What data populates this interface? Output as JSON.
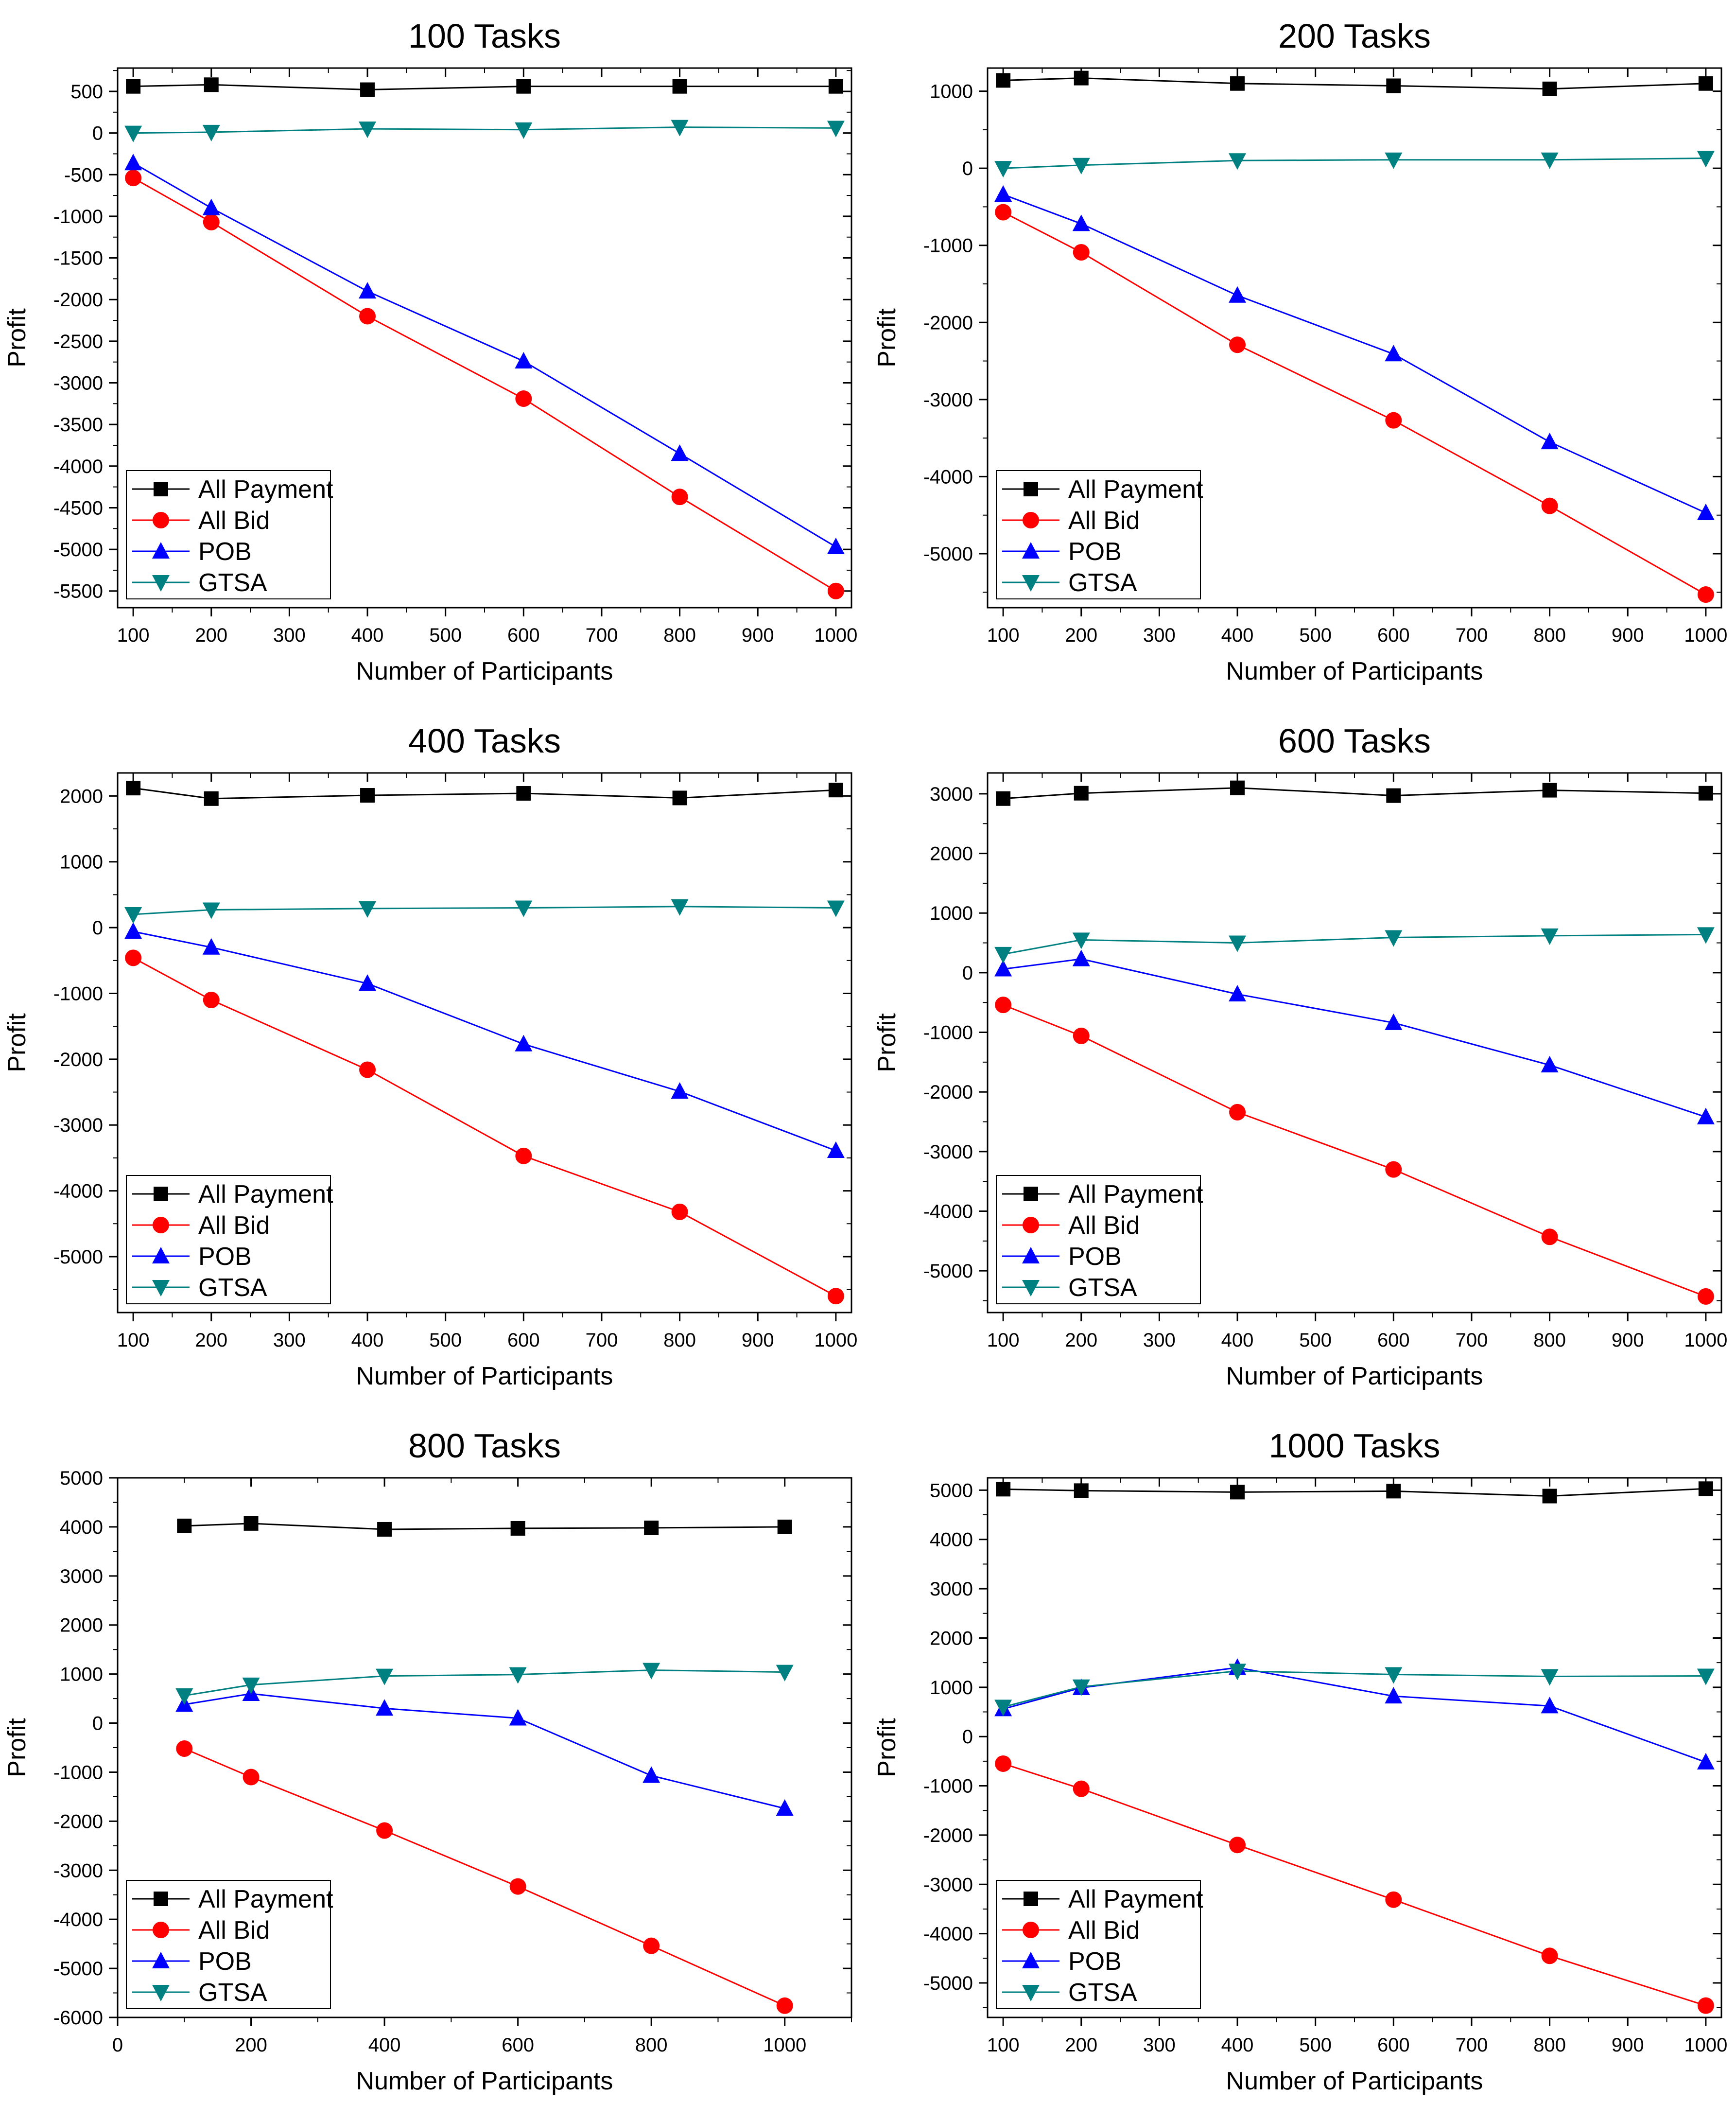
{
  "figure": {
    "chart_data": [
      {
        "type": "line",
        "title": "100 Tasks",
        "xlabel": "Number of Participants",
        "ylabel": "Profit",
        "xlim": [
          80,
          1020
        ],
        "ylim": [
          -5700,
          780
        ],
        "xticks": [
          100,
          200,
          300,
          400,
          500,
          600,
          700,
          800,
          900,
          1000
        ],
        "yticks": [
          500,
          0,
          -500,
          -1000,
          -1500,
          -2000,
          -2500,
          -3000,
          -3500,
          -4000,
          -4500,
          -5000,
          -5500
        ],
        "legend_position": "bottom-left",
        "x": [
          100,
          200,
          400,
          600,
          800,
          1000
        ],
        "series": [
          {
            "name": "All Payment",
            "marker": "square",
            "color": "#000000",
            "values": [
              560,
              580,
              520,
              560,
              560,
              560
            ]
          },
          {
            "name": "All Bid",
            "marker": "circle",
            "color": "#ff0000",
            "values": [
              -540,
              -1070,
              -2200,
              -3190,
              -4370,
              -5500
            ]
          },
          {
            "name": "POB",
            "marker": "triangle-up",
            "color": "#0000ff",
            "values": [
              -360,
              -900,
              -1900,
              -2740,
              -3850,
              -4970
            ]
          },
          {
            "name": "GTSA",
            "marker": "triangle-down",
            "color": "#008080",
            "values": [
              0,
              10,
              50,
              40,
              70,
              60
            ]
          }
        ]
      },
      {
        "type": "line",
        "title": "200 Tasks",
        "xlabel": "Number of Participants",
        "ylabel": "Profit",
        "xlim": [
          80,
          1020
        ],
        "ylim": [
          -5700,
          1300
        ],
        "xticks": [
          100,
          200,
          300,
          400,
          500,
          600,
          700,
          800,
          900,
          1000
        ],
        "yticks": [
          1000,
          0,
          -1000,
          -2000,
          -3000,
          -4000,
          -5000
        ],
        "legend_position": "bottom-left",
        "x": [
          100,
          200,
          400,
          600,
          800,
          1000
        ],
        "series": [
          {
            "name": "All Payment",
            "marker": "square",
            "color": "#000000",
            "values": [
              1140,
              1170,
              1100,
              1070,
              1030,
              1100
            ]
          },
          {
            "name": "All Bid",
            "marker": "circle",
            "color": "#ff0000",
            "values": [
              -570,
              -1090,
              -2290,
              -3270,
              -4380,
              -5530
            ]
          },
          {
            "name": "POB",
            "marker": "triangle-up",
            "color": "#0000ff",
            "values": [
              -340,
              -720,
              -1650,
              -2410,
              -3550,
              -4470
            ]
          },
          {
            "name": "GTSA",
            "marker": "triangle-down",
            "color": "#008080",
            "values": [
              0,
              40,
              100,
              110,
              110,
              130
            ]
          }
        ]
      },
      {
        "type": "line",
        "title": "400 Tasks",
        "xlabel": "Number of Participants",
        "ylabel": "Profit",
        "xlim": [
          80,
          1020
        ],
        "ylim": [
          -5850,
          2350
        ],
        "xticks": [
          100,
          200,
          300,
          400,
          500,
          600,
          700,
          800,
          900,
          1000
        ],
        "yticks": [
          2000,
          1000,
          0,
          -1000,
          -2000,
          -3000,
          -4000,
          -5000
        ],
        "legend_position": "bottom-left",
        "x": [
          100,
          200,
          400,
          600,
          800,
          1000
        ],
        "series": [
          {
            "name": "All Payment",
            "marker": "square",
            "color": "#000000",
            "values": [
              2120,
              1960,
              2010,
              2040,
              1970,
              2090
            ]
          },
          {
            "name": "All Bid",
            "marker": "circle",
            "color": "#ff0000",
            "values": [
              -460,
              -1100,
              -2160,
              -3470,
              -4320,
              -5600
            ]
          },
          {
            "name": "POB",
            "marker": "triangle-up",
            "color": "#0000ff",
            "values": [
              -60,
              -300,
              -850,
              -1770,
              -2490,
              -3390
            ]
          },
          {
            "name": "GTSA",
            "marker": "triangle-down",
            "color": "#008080",
            "values": [
              200,
              270,
              290,
              300,
              320,
              300
            ]
          }
        ]
      },
      {
        "type": "line",
        "title": "600 Tasks",
        "xlabel": "Number of Participants",
        "ylabel": "Profit",
        "xlim": [
          80,
          1020
        ],
        "ylim": [
          -5700,
          3350
        ],
        "xticks": [
          100,
          200,
          300,
          400,
          500,
          600,
          700,
          800,
          900,
          1000
        ],
        "yticks": [
          3000,
          2000,
          1000,
          0,
          -1000,
          -2000,
          -3000,
          -4000,
          -5000
        ],
        "legend_position": "bottom-left",
        "x": [
          100,
          200,
          400,
          600,
          800,
          1000
        ],
        "series": [
          {
            "name": "All Payment",
            "marker": "square",
            "color": "#000000",
            "values": [
              2920,
              3010,
              3100,
              2970,
              3060,
              3010
            ]
          },
          {
            "name": "All Bid",
            "marker": "circle",
            "color": "#ff0000",
            "values": [
              -540,
              -1060,
              -2340,
              -3300,
              -4430,
              -5430
            ]
          },
          {
            "name": "POB",
            "marker": "triangle-up",
            "color": "#0000ff",
            "values": [
              60,
              230,
              -360,
              -840,
              -1550,
              -2420
            ]
          },
          {
            "name": "GTSA",
            "marker": "triangle-down",
            "color": "#008080",
            "values": [
              310,
              550,
              500,
              590,
              620,
              640
            ]
          }
        ]
      },
      {
        "type": "line",
        "title": "800 Tasks",
        "xlabel": "Number of Participants",
        "ylabel": "Profit",
        "xlim": [
          0,
          1100
        ],
        "ylim": [
          -6000,
          5000
        ],
        "xticks": [
          0,
          200,
          400,
          600,
          800,
          1000
        ],
        "yticks": [
          5000,
          4000,
          3000,
          2000,
          1000,
          0,
          -1000,
          -2000,
          -3000,
          -4000,
          -5000,
          -6000
        ],
        "legend_position": "bottom-left",
        "x": [
          100,
          200,
          400,
          600,
          800,
          1000
        ],
        "series": [
          {
            "name": "All Payment",
            "marker": "square",
            "color": "#000000",
            "values": [
              4020,
              4070,
              3950,
              3970,
              3980,
              4000
            ]
          },
          {
            "name": "All Bid",
            "marker": "circle",
            "color": "#ff0000",
            "values": [
              -520,
              -1100,
              -2190,
              -3330,
              -4540,
              -5760
            ]
          },
          {
            "name": "POB",
            "marker": "triangle-up",
            "color": "#0000ff",
            "values": [
              380,
              600,
              300,
              100,
              -1070,
              -1740
            ]
          },
          {
            "name": "GTSA",
            "marker": "triangle-down",
            "color": "#008080",
            "values": [
              560,
              780,
              960,
              990,
              1080,
              1040
            ]
          }
        ]
      },
      {
        "type": "line",
        "title": "1000 Tasks",
        "xlabel": "Number of Participants",
        "ylabel": "Profit",
        "xlim": [
          80,
          1020
        ],
        "ylim": [
          -5700,
          5250
        ],
        "xticks": [
          100,
          200,
          300,
          400,
          500,
          600,
          700,
          800,
          900,
          1000
        ],
        "yticks": [
          5000,
          4000,
          3000,
          2000,
          1000,
          0,
          -1000,
          -2000,
          -3000,
          -4000,
          -5000
        ],
        "legend_position": "bottom-left",
        "x": [
          100,
          200,
          400,
          600,
          800,
          1000
        ],
        "series": [
          {
            "name": "All Payment",
            "marker": "square",
            "color": "#000000",
            "values": [
              5020,
              4990,
              4960,
              4980,
              4880,
              5030
            ]
          },
          {
            "name": "All Bid",
            "marker": "circle",
            "color": "#ff0000",
            "values": [
              -550,
              -1060,
              -2200,
              -3310,
              -4450,
              -5460
            ]
          },
          {
            "name": "POB",
            "marker": "triangle-up",
            "color": "#0000ff",
            "values": [
              560,
              990,
              1400,
              820,
              620,
              -520
            ]
          },
          {
            "name": "GTSA",
            "marker": "triangle-down",
            "color": "#008080",
            "values": [
              600,
              1010,
              1330,
              1260,
              1220,
              1230
            ]
          }
        ]
      }
    ]
  }
}
